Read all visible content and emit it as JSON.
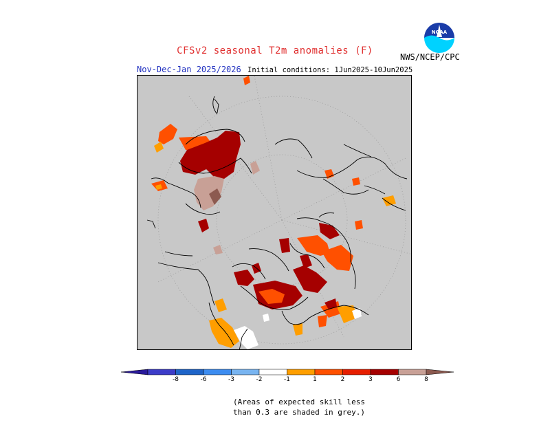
{
  "header": {
    "title": "CFSv2 seasonal T2m anomalies (F)",
    "period": "Nov-Dec-Jan 2025/2026",
    "initial_conditions": "Initial conditions: 1Jun2025-10Jun2025",
    "agency": "NWS/NCEP/CPC",
    "logo_text": "NOAA"
  },
  "colors": {
    "ocean_grey": "#c8c8c8",
    "coast": "#000000",
    "grid": "#9a9a9a"
  },
  "colorbar": {
    "ticks": [
      "-8",
      "-6",
      "-3",
      "-2",
      "-1",
      "1",
      "2",
      "3",
      "6",
      "8"
    ],
    "colors": [
      "#2a1a9a",
      "#3c3cc8",
      "#1e64c8",
      "#3c8cf0",
      "#78b4f0",
      "#ffffff",
      "#ff9e00",
      "#ff5000",
      "#e61e00",
      "#a50000",
      "#c8a096",
      "#8c5a50"
    ]
  },
  "note": {
    "line1": "(Areas of expected skill less",
    "line2": "than 0.3 are shaded in grey.)"
  }
}
